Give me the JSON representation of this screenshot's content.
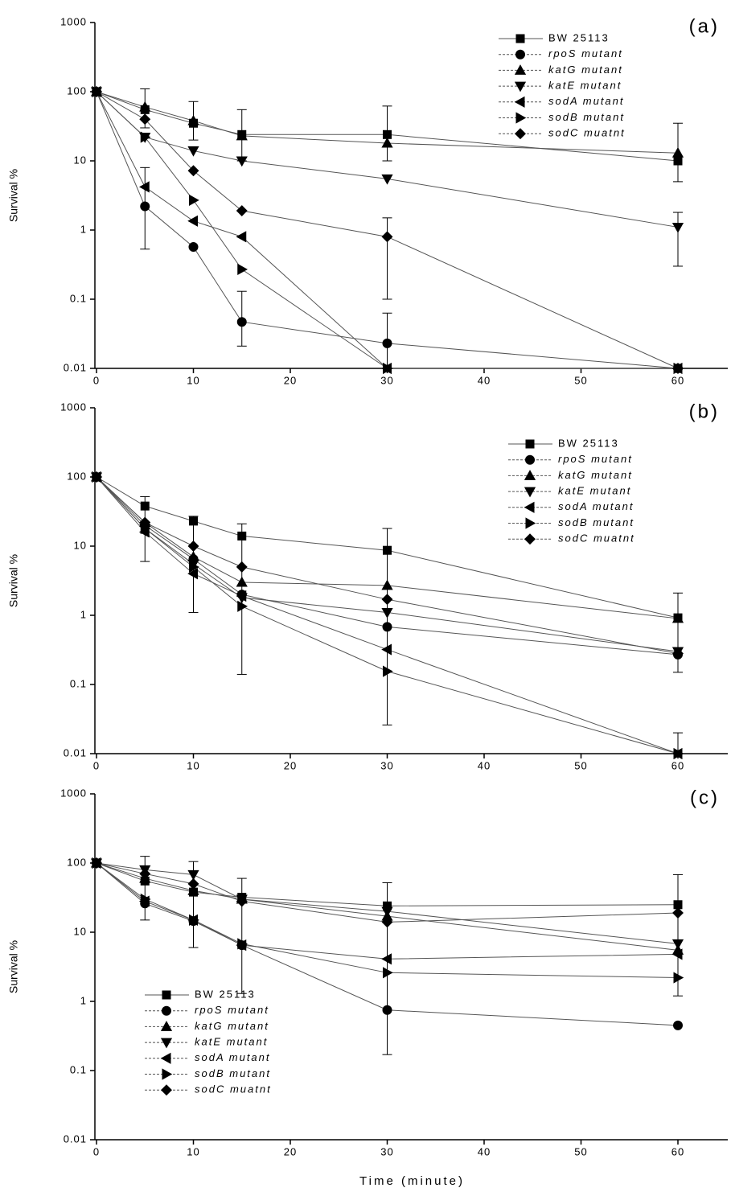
{
  "chart_data": [
    {
      "type": "line",
      "panel_label": "(a)",
      "ylabel": "Survival %",
      "log_y": true,
      "legend": "upper right",
      "x": [
        0,
        5,
        10,
        15,
        30,
        60
      ],
      "xlim": [
        0,
        65
      ],
      "xticks": [
        0,
        10,
        20,
        30,
        40,
        50,
        60
      ],
      "ylim": [
        0.01,
        1000
      ],
      "yticks": [
        0.01,
        0.1,
        1,
        10,
        100,
        1000
      ],
      "series": [
        {
          "name": "BW 25113",
          "color": "#000000",
          "marker": "square",
          "values": [
            100,
            55,
            35,
            24,
            24,
            10
          ],
          "errors_low": [
            null,
            30,
            20,
            10,
            10,
            5
          ],
          "errors_high": [
            null,
            110,
            72,
            55,
            62,
            35
          ]
        },
        {
          "name": "rpoS mutant",
          "color": "#000000",
          "marker": "circle",
          "values": [
            100,
            2.2,
            0.57,
            0.047,
            0.023,
            0.01
          ],
          "errors_low": [
            null,
            0.53,
            null,
            0.021,
            0.01,
            null
          ],
          "errors_high": [
            null,
            8,
            null,
            0.13,
            0.063,
            null
          ]
        },
        {
          "name": "katG mutant",
          "color": "#000000",
          "marker": "triangle-up",
          "values": [
            100,
            60,
            38,
            23,
            18,
            13
          ]
        },
        {
          "name": "katE mutant",
          "color": "#000000",
          "marker": "triangle-down",
          "values": [
            100,
            22,
            14,
            10,
            5.5,
            1.1
          ],
          "errors_low": [
            null,
            null,
            null,
            null,
            null,
            0.3
          ],
          "errors_high": [
            null,
            null,
            null,
            null,
            null,
            1.8
          ]
        },
        {
          "name": "sodA mutant",
          "color": "#000000",
          "marker": "triangle-left",
          "values": [
            100,
            4.2,
            1.35,
            0.8,
            0.01,
            0.01
          ]
        },
        {
          "name": "sodB mutant",
          "color": "#000000",
          "marker": "triangle-right",
          "values": [
            100,
            22,
            2.7,
            0.27,
            0.01,
            0.01
          ]
        },
        {
          "name": "sodC muatnt",
          "color": "#000000",
          "marker": "diamond",
          "values": [
            100,
            40,
            7.2,
            1.9,
            0.8,
            0.01
          ],
          "errors_low": [
            null,
            null,
            null,
            null,
            0.1,
            null
          ],
          "errors_high": [
            null,
            null,
            null,
            3,
            1.5,
            null
          ]
        }
      ]
    },
    {
      "type": "line",
      "panel_label": "(b)",
      "ylabel": "Survival %",
      "log_y": true,
      "legend": "upper right",
      "x": [
        0,
        5,
        10,
        15,
        30,
        60
      ],
      "xlim": [
        0,
        65
      ],
      "xticks": [
        0,
        10,
        20,
        30,
        40,
        50,
        60
      ],
      "ylim": [
        0.01,
        1000
      ],
      "yticks": [
        0.01,
        0.1,
        1,
        10,
        100,
        1000
      ],
      "series": [
        {
          "name": "BW 25113",
          "color": "#000000",
          "marker": "square",
          "values": [
            100,
            38,
            23,
            14,
            8.7,
            0.92
          ],
          "errors_low": [
            null,
            6,
            1.1,
            0.14,
            0.026,
            0.15
          ],
          "errors_high": [
            null,
            52,
            27,
            21,
            18,
            2.1
          ]
        },
        {
          "name": "rpoS mutant",
          "color": "#000000",
          "marker": "circle",
          "values": [
            100,
            20,
            6.5,
            2,
            0.68,
            0.27
          ]
        },
        {
          "name": "katG mutant",
          "color": "#000000",
          "marker": "triangle-up",
          "values": [
            100,
            22,
            7,
            3,
            2.7,
            0.9
          ]
        },
        {
          "name": "katE mutant",
          "color": "#000000",
          "marker": "triangle-down",
          "values": [
            100,
            18,
            5.5,
            1.8,
            1.1,
            0.3
          ]
        },
        {
          "name": "sodA mutant",
          "color": "#000000",
          "marker": "triangle-left",
          "values": [
            100,
            16,
            4,
            1.9,
            0.32,
            0.01
          ],
          "errors_low": [
            null,
            null,
            null,
            null,
            null,
            0.01
          ],
          "errors_high": [
            null,
            null,
            null,
            null,
            null,
            0.02
          ]
        },
        {
          "name": "sodB mutant",
          "color": "#000000",
          "marker": "triangle-right",
          "values": [
            100,
            18,
            5,
            1.35,
            0.155,
            0.01
          ]
        },
        {
          "name": "sodC muatnt",
          "color": "#000000",
          "marker": "diamond",
          "values": [
            100,
            22,
            10,
            5,
            1.7,
            0.28
          ]
        }
      ]
    },
    {
      "type": "line",
      "panel_label": "(c)",
      "ylabel": "Survival %",
      "xlabel": "Time (minute)",
      "log_y": true,
      "legend": "lower left",
      "x": [
        0,
        5,
        10,
        15,
        30,
        60
      ],
      "xlim": [
        0,
        65
      ],
      "xticks": [
        0,
        10,
        20,
        30,
        40,
        50,
        60
      ],
      "ylim": [
        0.01,
        1000
      ],
      "yticks": [
        0.01,
        0.1,
        1,
        10,
        100,
        1000
      ],
      "series": [
        {
          "name": "BW 25113",
          "color": "#000000",
          "marker": "square",
          "values": [
            100,
            55,
            38,
            32,
            24,
            25
          ],
          "errors_low": [
            null,
            15,
            6,
            1.3,
            0.17,
            1.2
          ],
          "errors_high": [
            null,
            125,
            105,
            60,
            52,
            68
          ]
        },
        {
          "name": "rpoS mutant",
          "color": "#000000",
          "marker": "circle",
          "values": [
            100,
            26,
            14.5,
            6.5,
            0.75,
            0.45
          ]
        },
        {
          "name": "katG mutant",
          "color": "#000000",
          "marker": "triangle-up",
          "values": [
            100,
            60,
            40,
            30,
            17,
            5.5
          ]
        },
        {
          "name": "katE mutant",
          "color": "#000000",
          "marker": "triangle-down",
          "values": [
            100,
            80,
            68,
            30,
            20,
            6.8
          ]
        },
        {
          "name": "sodA mutant",
          "color": "#000000",
          "marker": "triangle-left",
          "values": [
            100,
            28,
            15,
            6.5,
            4.1,
            4.8
          ]
        },
        {
          "name": "sodB mutant",
          "color": "#000000",
          "marker": "triangle-right",
          "values": [
            100,
            30,
            15,
            6.8,
            2.6,
            2.2
          ]
        },
        {
          "name": "sodC muatnt",
          "color": "#000000",
          "marker": "diamond",
          "values": [
            100,
            70,
            50,
            28,
            14,
            19
          ]
        }
      ]
    }
  ]
}
